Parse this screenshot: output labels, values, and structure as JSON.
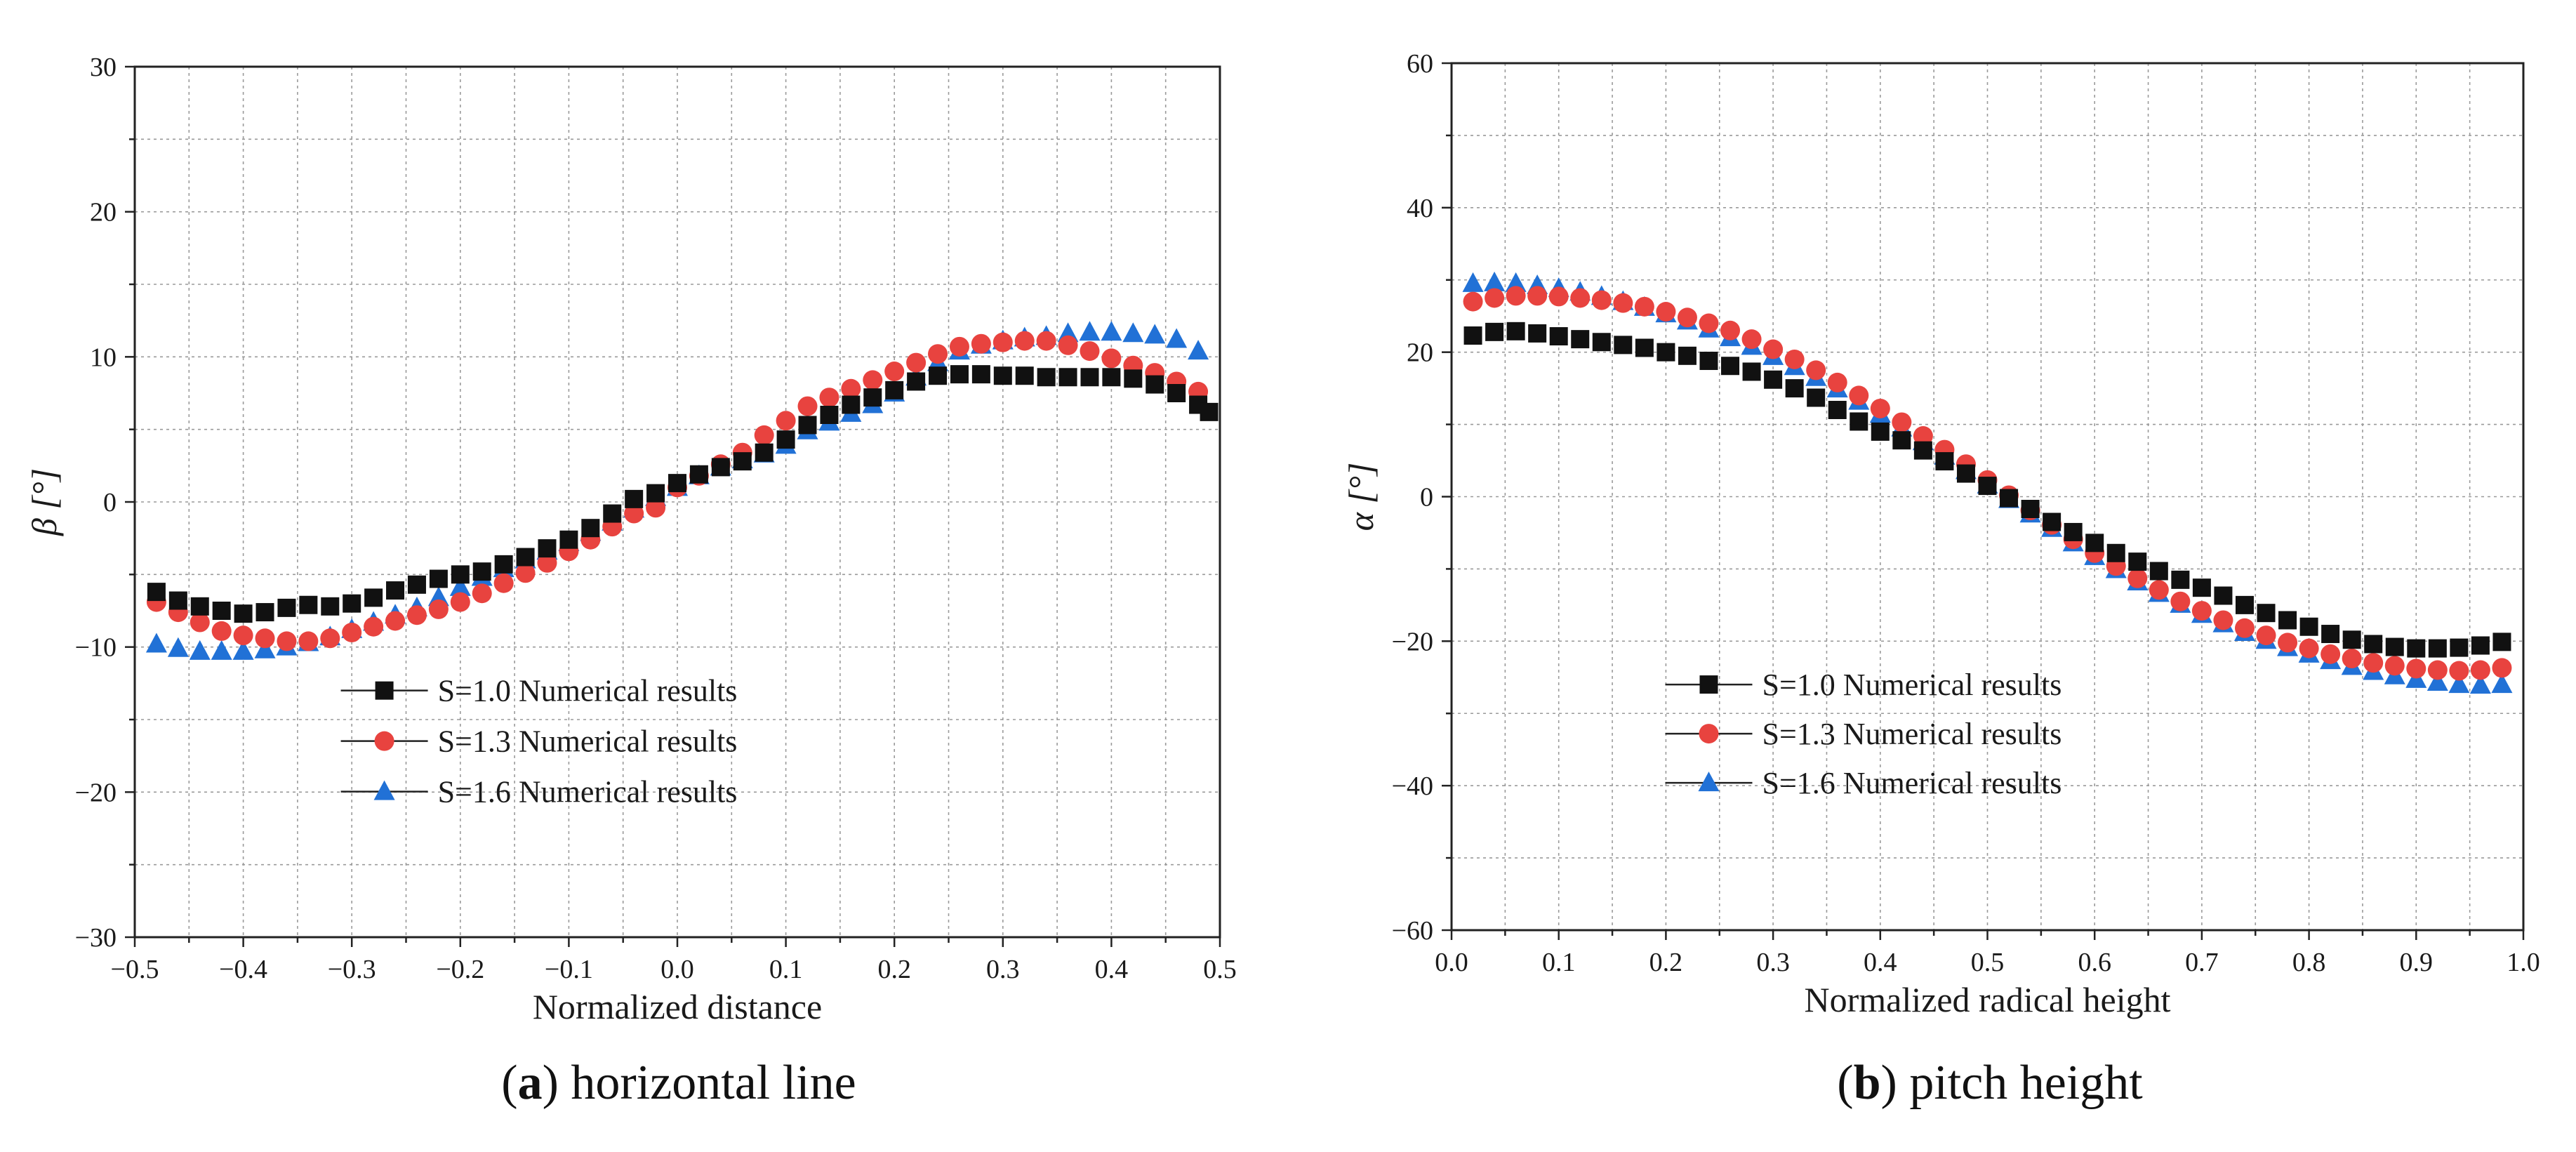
{
  "colors": {
    "s10": "#111111",
    "s13": "#e8433f",
    "s16": "#2171d6",
    "grid": "#9a9a9a",
    "axis": "#222222"
  },
  "chart_data": [
    {
      "type": "scatter",
      "caption_label": "a",
      "caption_text": "horizontal line",
      "xlabel": "Normalized distance",
      "ylabel": "β [°]",
      "xlim": [
        -0.5,
        0.5
      ],
      "ylim": [
        -30,
        30
      ],
      "xticks": [
        -0.5,
        -0.4,
        -0.3,
        -0.2,
        -0.1,
        0.0,
        0.1,
        0.2,
        0.3,
        0.4,
        0.5
      ],
      "xtick_labels": [
        "−0.5",
        "−0.4",
        "−0.3",
        "−0.2",
        "−0.1",
        "0.0",
        "0.1",
        "0.2",
        "0.3",
        "0.4",
        "0.5"
      ],
      "yticks": [
        -30,
        -20,
        -10,
        0,
        10,
        20,
        30
      ],
      "ytick_labels": [
        "−30",
        "−20",
        "−10",
        "0",
        "10",
        "20",
        "30"
      ],
      "legend_position": "lower-center",
      "series": [
        {
          "name": "S=1.0 Numerical results",
          "marker": "square",
          "color_key": "s10",
          "x": [
            -0.48,
            -0.46,
            -0.44,
            -0.42,
            -0.4,
            -0.38,
            -0.36,
            -0.34,
            -0.32,
            -0.3,
            -0.28,
            -0.26,
            -0.24,
            -0.22,
            -0.2,
            -0.18,
            -0.16,
            -0.14,
            -0.12,
            -0.1,
            -0.08,
            -0.06,
            -0.04,
            -0.02,
            0.0,
            0.02,
            0.04,
            0.06,
            0.08,
            0.1,
            0.12,
            0.14,
            0.16,
            0.18,
            0.2,
            0.22,
            0.24,
            0.26,
            0.28,
            0.3,
            0.32,
            0.34,
            0.36,
            0.38,
            0.4,
            0.42,
            0.44,
            0.46,
            0.48,
            0.49
          ],
          "values": [
            -6.2,
            -6.8,
            -7.2,
            -7.5,
            -7.7,
            -7.6,
            -7.3,
            -7.1,
            -7.2,
            -7.0,
            -6.6,
            -6.1,
            -5.7,
            -5.3,
            -5.0,
            -4.8,
            -4.3,
            -3.8,
            -3.2,
            -2.6,
            -1.8,
            -0.8,
            0.2,
            0.6,
            1.3,
            1.9,
            2.4,
            2.8,
            3.4,
            4.3,
            5.3,
            6.0,
            6.7,
            7.2,
            7.7,
            8.3,
            8.7,
            8.8,
            8.8,
            8.7,
            8.7,
            8.6,
            8.6,
            8.6,
            8.6,
            8.5,
            8.1,
            7.5,
            6.7,
            6.2
          ]
        },
        {
          "name": "S=1.3 Numerical results",
          "marker": "circle",
          "color_key": "s13",
          "x": [
            -0.48,
            -0.46,
            -0.44,
            -0.42,
            -0.4,
            -0.38,
            -0.36,
            -0.34,
            -0.32,
            -0.3,
            -0.28,
            -0.26,
            -0.24,
            -0.22,
            -0.2,
            -0.18,
            -0.16,
            -0.14,
            -0.12,
            -0.1,
            -0.08,
            -0.06,
            -0.04,
            -0.02,
            0.0,
            0.02,
            0.04,
            0.06,
            0.08,
            0.1,
            0.12,
            0.14,
            0.16,
            0.18,
            0.2,
            0.22,
            0.24,
            0.26,
            0.28,
            0.3,
            0.32,
            0.34,
            0.36,
            0.38,
            0.4,
            0.42,
            0.44,
            0.46,
            0.48
          ],
          "values": [
            -6.9,
            -7.6,
            -8.3,
            -8.9,
            -9.2,
            -9.4,
            -9.6,
            -9.6,
            -9.4,
            -9.0,
            -8.6,
            -8.2,
            -7.8,
            -7.4,
            -6.9,
            -6.3,
            -5.6,
            -4.9,
            -4.2,
            -3.4,
            -2.6,
            -1.7,
            -0.8,
            -0.4,
            1.0,
            1.8,
            2.6,
            3.4,
            4.6,
            5.6,
            6.6,
            7.2,
            7.8,
            8.4,
            9.0,
            9.6,
            10.2,
            10.7,
            10.9,
            11.0,
            11.1,
            11.1,
            10.8,
            10.4,
            9.9,
            9.4,
            8.9,
            8.3,
            7.6
          ]
        },
        {
          "name": "S=1.6 Numerical results",
          "marker": "triangle",
          "color_key": "s16",
          "x": [
            -0.48,
            -0.46,
            -0.44,
            -0.42,
            -0.4,
            -0.38,
            -0.36,
            -0.34,
            -0.32,
            -0.3,
            -0.28,
            -0.26,
            -0.24,
            -0.22,
            -0.2,
            -0.18,
            -0.16,
            -0.14,
            -0.12,
            -0.1,
            -0.08,
            -0.06,
            -0.04,
            -0.02,
            0.0,
            0.02,
            0.04,
            0.06,
            0.08,
            0.1,
            0.12,
            0.14,
            0.16,
            0.18,
            0.2,
            0.22,
            0.24,
            0.26,
            0.28,
            0.3,
            0.32,
            0.34,
            0.36,
            0.38,
            0.4,
            0.42,
            0.44,
            0.46,
            0.48
          ],
          "values": [
            -9.8,
            -10.1,
            -10.3,
            -10.3,
            -10.3,
            -10.2,
            -10.0,
            -9.7,
            -9.3,
            -8.8,
            -8.3,
            -7.8,
            -7.3,
            -6.6,
            -5.9,
            -5.2,
            -4.6,
            -4.0,
            -3.4,
            -2.8,
            -2.1,
            -1.4,
            -0.5,
            0.3,
            1.0,
            1.8,
            2.4,
            2.9,
            3.3,
            3.9,
            4.9,
            5.5,
            6.1,
            6.7,
            7.5,
            8.6,
            9.6,
            10.4,
            10.8,
            11.1,
            11.3,
            11.4,
            11.6,
            11.7,
            11.7,
            11.6,
            11.5,
            11.2,
            10.4
          ]
        }
      ]
    },
    {
      "type": "scatter",
      "caption_label": "b",
      "caption_text": "pitch height",
      "xlabel": "Normalized radical height",
      "ylabel": "α [°]",
      "xlim": [
        0.0,
        1.0
      ],
      "ylim": [
        -60,
        60
      ],
      "xticks": [
        0.0,
        0.1,
        0.2,
        0.3,
        0.4,
        0.5,
        0.6,
        0.7,
        0.8,
        0.9,
        1.0
      ],
      "xtick_labels": [
        "0.0",
        "0.1",
        "0.2",
        "0.3",
        "0.4",
        "0.5",
        "0.6",
        "0.7",
        "0.8",
        "0.9",
        "1.0"
      ],
      "yticks": [
        -60,
        -40,
        -20,
        0,
        20,
        40,
        60
      ],
      "ytick_labels": [
        "−60",
        "−40",
        "−20",
        "0",
        "20",
        "40",
        "60"
      ],
      "legend_position": "lower-center",
      "series": [
        {
          "name": "S=1.0 Numerical results",
          "marker": "square",
          "color_key": "s10",
          "x": [
            0.02,
            0.04,
            0.06,
            0.08,
            0.1,
            0.12,
            0.14,
            0.16,
            0.18,
            0.2,
            0.22,
            0.24,
            0.26,
            0.28,
            0.3,
            0.32,
            0.34,
            0.36,
            0.38,
            0.4,
            0.42,
            0.44,
            0.46,
            0.48,
            0.5,
            0.52,
            0.54,
            0.56,
            0.58,
            0.6,
            0.62,
            0.64,
            0.66,
            0.68,
            0.7,
            0.72,
            0.74,
            0.76,
            0.78,
            0.8,
            0.82,
            0.84,
            0.86,
            0.88,
            0.9,
            0.92,
            0.94,
            0.96,
            0.98
          ],
          "values": [
            22.3,
            22.8,
            22.9,
            22.6,
            22.2,
            21.8,
            21.4,
            21.0,
            20.6,
            20.0,
            19.5,
            18.8,
            18.1,
            17.3,
            16.2,
            15.0,
            13.7,
            12.0,
            10.4,
            9.0,
            7.8,
            6.4,
            4.9,
            3.2,
            1.5,
            -0.2,
            -1.7,
            -3.5,
            -4.9,
            -6.4,
            -7.8,
            -9.0,
            -10.3,
            -11.5,
            -12.6,
            -13.7,
            -15.0,
            -16.1,
            -17.1,
            -18.0,
            -19.0,
            -19.8,
            -20.4,
            -20.8,
            -21.0,
            -21.0,
            -20.9,
            -20.6,
            -20.1
          ]
        },
        {
          "name": "S=1.3 Numerical results",
          "marker": "circle",
          "color_key": "s13",
          "x": [
            0.02,
            0.04,
            0.06,
            0.08,
            0.1,
            0.12,
            0.14,
            0.16,
            0.18,
            0.2,
            0.22,
            0.24,
            0.26,
            0.28,
            0.3,
            0.32,
            0.34,
            0.36,
            0.38,
            0.4,
            0.42,
            0.44,
            0.46,
            0.48,
            0.5,
            0.52,
            0.54,
            0.56,
            0.58,
            0.6,
            0.62,
            0.64,
            0.66,
            0.68,
            0.7,
            0.72,
            0.74,
            0.76,
            0.78,
            0.8,
            0.82,
            0.84,
            0.86,
            0.88,
            0.9,
            0.92,
            0.94,
            0.96,
            0.98
          ],
          "values": [
            27.0,
            27.5,
            27.8,
            27.8,
            27.7,
            27.5,
            27.2,
            26.8,
            26.3,
            25.6,
            24.8,
            24.0,
            23.0,
            21.8,
            20.4,
            19.0,
            17.5,
            15.8,
            14.0,
            12.2,
            10.3,
            8.4,
            6.5,
            4.5,
            2.3,
            0.2,
            -1.9,
            -3.9,
            -5.9,
            -7.8,
            -9.6,
            -11.3,
            -12.9,
            -14.5,
            -15.8,
            -17.1,
            -18.2,
            -19.2,
            -20.2,
            -21.0,
            -21.8,
            -22.4,
            -23.0,
            -23.4,
            -23.8,
            -24.0,
            -24.1,
            -24.0,
            -23.7
          ]
        },
        {
          "name": "S=1.6 Numerical results",
          "marker": "triangle",
          "color_key": "s16",
          "x": [
            0.02,
            0.04,
            0.06,
            0.08,
            0.1,
            0.12,
            0.14,
            0.16,
            0.18,
            0.2,
            0.22,
            0.24,
            0.26,
            0.28,
            0.3,
            0.32,
            0.34,
            0.36,
            0.38,
            0.4,
            0.42,
            0.44,
            0.46,
            0.48,
            0.5,
            0.52,
            0.54,
            0.56,
            0.58,
            0.6,
            0.62,
            0.64,
            0.66,
            0.68,
            0.7,
            0.72,
            0.74,
            0.76,
            0.78,
            0.8,
            0.82,
            0.84,
            0.86,
            0.88,
            0.9,
            0.92,
            0.94,
            0.96,
            0.98
          ],
          "values": [
            29.5,
            29.6,
            29.5,
            29.2,
            28.8,
            28.3,
            27.7,
            27.0,
            26.2,
            25.3,
            24.3,
            23.2,
            22.0,
            20.8,
            19.4,
            18.0,
            16.5,
            14.9,
            13.2,
            11.4,
            9.5,
            7.6,
            5.6,
            3.6,
            1.6,
            -0.4,
            -2.4,
            -4.4,
            -6.4,
            -8.3,
            -10.1,
            -11.8,
            -13.4,
            -14.9,
            -16.3,
            -17.6,
            -18.8,
            -19.9,
            -20.9,
            -21.8,
            -22.7,
            -23.5,
            -24.2,
            -24.8,
            -25.3,
            -25.7,
            -26.0,
            -26.1,
            -26.0
          ]
        }
      ]
    }
  ]
}
